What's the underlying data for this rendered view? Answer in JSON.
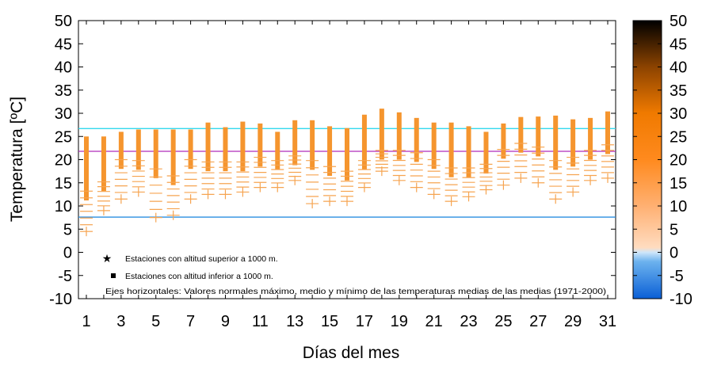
{
  "chart_data": {
    "type": "range",
    "xlabel": "Días del mes",
    "ylabel": "Temperatura  [ºC]",
    "xlim": [
      1,
      31
    ],
    "ylim": [
      -10,
      50
    ],
    "x_ticks": [
      "1",
      "3",
      "5",
      "7",
      "9",
      "11",
      "13",
      "15",
      "17",
      "19",
      "21",
      "23",
      "25",
      "27",
      "29",
      "31"
    ],
    "y_ticks": [
      "-10",
      "-5",
      "0",
      "5",
      "10",
      "15",
      "20",
      "25",
      "30",
      "35",
      "40",
      "45",
      "50"
    ],
    "colorbar": {
      "min": -10,
      "max": 50,
      "ticks": [
        "-10",
        "-5",
        "0",
        "5",
        "10",
        "15",
        "20",
        "25",
        "30",
        "35",
        "40",
        "45",
        "50"
      ],
      "stops": [
        {
          "value": -10,
          "color": "#0a5fd6"
        },
        {
          "value": -2,
          "color": "#6cb2ee"
        },
        {
          "value": 0,
          "color": "#cfe6fa"
        },
        {
          "value": 1,
          "color": "#ffdcc0"
        },
        {
          "value": 10,
          "color": "#ffb072"
        },
        {
          "value": 20,
          "color": "#ff8a1e"
        },
        {
          "value": 30,
          "color": "#f07a00"
        },
        {
          "value": 40,
          "color": "#8c4300"
        },
        {
          "value": 50,
          "color": "#000000"
        }
      ]
    },
    "reference_lines": [
      {
        "value": 26.7,
        "color": "#33d9ee"
      },
      {
        "value": 21.8,
        "color": "#b02cbb"
      },
      {
        "value": 7.6,
        "color": "#2a8de0"
      }
    ],
    "days": [
      1,
      2,
      3,
      4,
      5,
      6,
      7,
      8,
      9,
      10,
      11,
      12,
      13,
      14,
      15,
      16,
      17,
      18,
      19,
      20,
      21,
      22,
      23,
      24,
      25,
      26,
      27,
      28,
      29,
      30,
      31
    ],
    "high_station_max": [
      25,
      25,
      26,
      26.5,
      26.5,
      26.5,
      26.5,
      28,
      27,
      28.2,
      27.8,
      26,
      28.5,
      28.5,
      27.2,
      26.8,
      29.7,
      31,
      30.2,
      29,
      28,
      28,
      27.2,
      26,
      27.8,
      29.2,
      29.3,
      29.5,
      28.7,
      29,
      30.4
    ],
    "high_station_min": [
      4.5,
      9,
      11.5,
      13,
      7.5,
      8,
      11.5,
      12.5,
      12.5,
      13,
      14,
      14,
      15.5,
      10.5,
      11,
      11,
      14,
      17.5,
      15.5,
      14,
      12.5,
      11,
      12,
      13.5,
      14.5,
      16,
      15,
      11.5,
      13,
      15.5,
      16
    ],
    "low_station_max": [
      24.7,
      24.7,
      26,
      26.5,
      26.5,
      25.2,
      26.5,
      28,
      27,
      28.2,
      27.8,
      26,
      28.5,
      28.5,
      27.2,
      26.5,
      29.7,
      31,
      30.2,
      29,
      28,
      28,
      27.2,
      26,
      27.8,
      29.2,
      29.3,
      29.5,
      28.7,
      29,
      28.5
    ],
    "low_station_min": [
      11.2,
      13.2,
      18,
      17.8,
      16,
      14.5,
      18,
      17.5,
      17.5,
      17.5,
      18.5,
      17.8,
      18.8,
      17.8,
      16.5,
      15.5,
      17.8,
      20,
      20,
      19.5,
      18,
      16.2,
      16.2,
      17,
      20.2,
      21.5,
      20.7,
      17.8,
      18.5,
      20,
      21.2
    ],
    "legend": {
      "above": "Estaciones con altitud superior a 1000 m.",
      "below": "Estaciones con altitud inferior a 1000 m.",
      "note": "Ejes horizontales: Valores normales máximo, medio y mínimo de las temperaturas medias de las medias (1971-2000)"
    },
    "colors": {
      "bar": "#f5952e",
      "cross": "#f6a450",
      "frame": "#000000"
    }
  }
}
